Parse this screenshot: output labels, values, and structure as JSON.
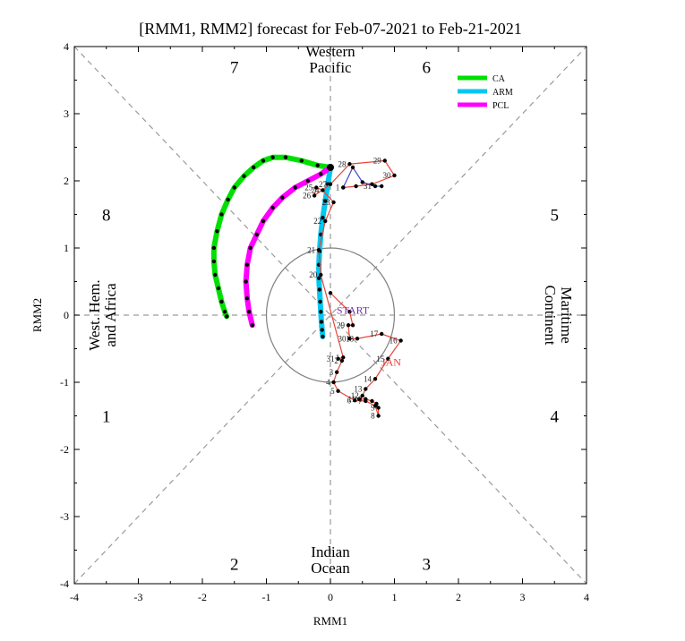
{
  "chart_data": {
    "type": "scatter",
    "title": "[RMM1, RMM2] forecast for Feb-07-2021 to Feb-21-2021",
    "xlabel": "RMM1",
    "ylabel": "RMM2",
    "xlim": [
      -4,
      4
    ],
    "ylim": [
      -4,
      4
    ],
    "ticks": [
      "-4",
      "-3",
      "-2",
      "-1",
      "0",
      "1",
      "2",
      "3",
      "4"
    ],
    "grid": false,
    "legend_position": "top-right",
    "colors": {
      "observed": "#e8443a",
      "observed_feb": "#4444dd",
      "CA": "#00e000",
      "ARM": "#00c8f0",
      "PCL": "#ff00ff",
      "guides": "#9a9a9a",
      "circle": "#808080"
    },
    "phase_labels": [
      {
        "text": "7",
        "x": -1.5,
        "y": 3.7
      },
      {
        "text": "6",
        "x": 1.5,
        "y": 3.7
      },
      {
        "text": "8",
        "x": -3.5,
        "y": 1.5
      },
      {
        "text": "5",
        "x": 3.5,
        "y": 1.5
      },
      {
        "text": "1",
        "x": -3.5,
        "y": -1.5
      },
      {
        "text": "4",
        "x": 3.5,
        "y": -1.5
      },
      {
        "text": "2",
        "x": -1.5,
        "y": -3.7
      },
      {
        "text": "3",
        "x": 1.5,
        "y": -3.7
      }
    ],
    "region_labels": [
      {
        "lines": [
          "Western",
          "Pacific"
        ],
        "x": 0,
        "y": 3.8,
        "rotate": 0
      },
      {
        "lines": [
          "Indian",
          "Ocean"
        ],
        "x": 0,
        "y": -3.65,
        "rotate": 0
      },
      {
        "lines": [
          "West. Hem.",
          "and Africa"
        ],
        "x": -3.55,
        "y": 0,
        "rotate": -90
      },
      {
        "lines": [
          "Maritime",
          "Continent"
        ],
        "x": 3.55,
        "y": 0,
        "rotate": 90
      }
    ],
    "observed": {
      "start_label": "START",
      "jan_label": "JAN",
      "jan_points": [
        {
          "d": "",
          "x": 0.0,
          "y": 0.33
        },
        {
          "d": "",
          "x": 0.3,
          "y": 0.05
        },
        {
          "d": "",
          "x": 0.35,
          "y": -0.15
        },
        {
          "d": "29",
          "x": 0.28,
          "y": -0.15
        },
        {
          "d": "30",
          "x": 0.3,
          "y": -0.35
        },
        {
          "d": "18",
          "x": 0.42,
          "y": -0.35
        },
        {
          "d": "17",
          "x": 0.8,
          "y": -0.28
        },
        {
          "d": "16",
          "x": 1.1,
          "y": -0.38
        },
        {
          "d": "15",
          "x": 0.9,
          "y": -0.65
        },
        {
          "d": "14",
          "x": 0.7,
          "y": -0.95
        },
        {
          "d": "13",
          "x": 0.55,
          "y": -1.1
        },
        {
          "d": "12",
          "x": 0.5,
          "y": -1.2
        },
        {
          "d": "11",
          "x": 0.45,
          "y": -1.25
        },
        {
          "d": "10",
          "x": 0.55,
          "y": -1.25
        },
        {
          "d": "",
          "x": 0.65,
          "y": -1.28
        },
        {
          "d": "",
          "x": 0.72,
          "y": -1.32
        },
        {
          "d": "9",
          "x": 0.75,
          "y": -1.38
        },
        {
          "d": "8",
          "x": 0.75,
          "y": -1.5
        },
        {
          "d": "",
          "x": 0.7,
          "y": -1.35
        },
        {
          "d": "7",
          "x": 0.55,
          "y": -1.28
        },
        {
          "d": "6",
          "x": 0.38,
          "y": -1.27
        },
        {
          "d": "5",
          "x": 0.12,
          "y": -1.13
        },
        {
          "d": "4",
          "x": 0.05,
          "y": -1.0
        },
        {
          "d": "3",
          "x": 0.1,
          "y": -0.85
        },
        {
          "d": "2",
          "x": 0.18,
          "y": -0.68
        },
        {
          "d": "31",
          "x": 0.12,
          "y": -0.65
        },
        {
          "d": "1",
          "x": 0.2,
          "y": -0.63
        },
        {
          "d": "20",
          "x": -0.15,
          "y": 0.6
        },
        {
          "d": "21",
          "x": -0.18,
          "y": 0.97
        },
        {
          "d": "22",
          "x": -0.08,
          "y": 1.4
        },
        {
          "d": "23",
          "x": 0.05,
          "y": 1.68
        },
        {
          "d": "24",
          "x": -0.12,
          "y": 1.86
        },
        {
          "d": "25",
          "x": -0.22,
          "y": 1.9
        },
        {
          "d": "26",
          "x": -0.25,
          "y": 1.78
        },
        {
          "d": "27",
          "x": 0.0,
          "y": 1.95
        },
        {
          "d": "28",
          "x": 0.3,
          "y": 2.25
        },
        {
          "d": "29",
          "x": 0.85,
          "y": 2.3
        },
        {
          "d": "30",
          "x": 1.0,
          "y": 2.08
        },
        {
          "d": "",
          "x": 0.65,
          "y": 1.95
        },
        {
          "d": "",
          "x": 0.4,
          "y": 1.92
        },
        {
          "d": "",
          "x": 0.2,
          "y": 1.9
        }
      ],
      "feb_points": [
        {
          "d": "1",
          "x": 0.2,
          "y": 1.9
        },
        {
          "d": "",
          "x": 0.35,
          "y": 2.2
        },
        {
          "d": "",
          "x": 0.5,
          "y": 1.98
        },
        {
          "d": "31",
          "x": 0.7,
          "y": 1.92
        },
        {
          "d": "",
          "x": 0.8,
          "y": 1.92
        }
      ]
    },
    "series": [
      {
        "name": "CA",
        "points": [
          {
            "x": 0.0,
            "y": 2.2
          },
          {
            "x": -0.2,
            "y": 2.23
          },
          {
            "x": -0.45,
            "y": 2.3
          },
          {
            "x": -0.7,
            "y": 2.35
          },
          {
            "x": -0.9,
            "y": 2.35
          },
          {
            "x": -1.05,
            "y": 2.3
          },
          {
            "x": -1.2,
            "y": 2.2
          },
          {
            "x": -1.35,
            "y": 2.07
          },
          {
            "x": -1.5,
            "y": 1.9
          },
          {
            "x": -1.6,
            "y": 1.72
          },
          {
            "x": -1.7,
            "y": 1.5
          },
          {
            "x": -1.77,
            "y": 1.25
          },
          {
            "x": -1.82,
            "y": 1.0
          },
          {
            "x": -1.82,
            "y": 0.8
          },
          {
            "x": -1.8,
            "y": 0.6
          },
          {
            "x": -1.75,
            "y": 0.4
          },
          {
            "x": -1.7,
            "y": 0.2
          },
          {
            "x": -1.65,
            "y": 0.05
          },
          {
            "x": -1.62,
            "y": -0.02
          }
        ]
      },
      {
        "name": "ARM",
        "points": [
          {
            "x": 0.0,
            "y": 2.2
          },
          {
            "x": -0.04,
            "y": 1.95
          },
          {
            "x": -0.08,
            "y": 1.7
          },
          {
            "x": -0.12,
            "y": 1.45
          },
          {
            "x": -0.15,
            "y": 1.2
          },
          {
            "x": -0.17,
            "y": 0.95
          },
          {
            "x": -0.18,
            "y": 0.75
          },
          {
            "x": -0.18,
            "y": 0.55
          },
          {
            "x": -0.17,
            "y": 0.38
          },
          {
            "x": -0.16,
            "y": 0.2
          },
          {
            "x": -0.15,
            "y": 0.05
          },
          {
            "x": -0.14,
            "y": -0.1
          },
          {
            "x": -0.13,
            "y": -0.22
          },
          {
            "x": -0.12,
            "y": -0.32
          }
        ]
      },
      {
        "name": "PCL",
        "points": [
          {
            "x": 0.0,
            "y": 2.2
          },
          {
            "x": -0.15,
            "y": 2.1
          },
          {
            "x": -0.35,
            "y": 2.0
          },
          {
            "x": -0.55,
            "y": 1.9
          },
          {
            "x": -0.75,
            "y": 1.75
          },
          {
            "x": -0.9,
            "y": 1.6
          },
          {
            "x": -1.05,
            "y": 1.4
          },
          {
            "x": -1.15,
            "y": 1.2
          },
          {
            "x": -1.25,
            "y": 1.0
          },
          {
            "x": -1.3,
            "y": 0.75
          },
          {
            "x": -1.32,
            "y": 0.5
          },
          {
            "x": -1.3,
            "y": 0.25
          },
          {
            "x": -1.27,
            "y": 0.05
          },
          {
            "x": -1.22,
            "y": -0.15
          }
        ]
      }
    ]
  }
}
